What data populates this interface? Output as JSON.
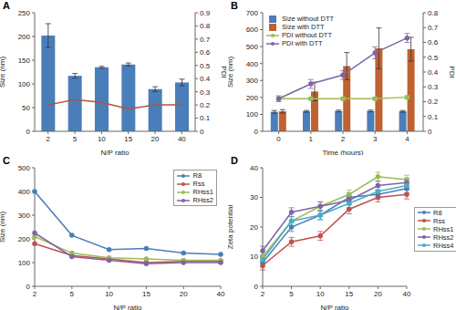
{
  "chart_data": [
    {
      "type": "bar",
      "title": "A",
      "x_label": "N/P ratio",
      "y_label": "Size (nm)",
      "y2_label": "PDI",
      "categories": [
        "2",
        "5",
        "10",
        "15",
        "20",
        "40"
      ],
      "ylim": [
        0,
        250
      ],
      "yticks": [
        0,
        50,
        100,
        150,
        200,
        250
      ],
      "y2lim": [
        0,
        0.9
      ],
      "y2ticks": [
        0,
        0.1,
        0.2,
        0.3,
        0.4,
        0.5,
        0.6,
        0.7,
        0.8,
        0.9
      ],
      "series": [
        {
          "type": "bar",
          "color": "#4a7ebb",
          "values": [
            202,
            117,
            135,
            141,
            89,
            103
          ],
          "errors": [
            25,
            5,
            2,
            3,
            5,
            7
          ]
        },
        {
          "type": "line",
          "axis": "y2",
          "color": "#b4533c",
          "values": [
            0.2,
            0.24,
            0.22,
            0.17,
            0.2,
            0.2
          ]
        }
      ]
    },
    {
      "type": "bar",
      "title": "B",
      "x_label": "Time (hours)",
      "y_label": "Size (nm)",
      "y2_label": "PDI",
      "categories": [
        "0",
        "1",
        "2",
        "3",
        "4"
      ],
      "ylim": [
        0,
        700
      ],
      "yticks": [
        0,
        100,
        200,
        300,
        400,
        500,
        600,
        700
      ],
      "y2lim": [
        0,
        0.8
      ],
      "y2ticks": [
        0,
        0.1,
        0.2,
        0.3,
        0.4,
        0.5,
        0.6,
        0.7,
        0.8
      ],
      "legend": "upper left",
      "series": [
        {
          "name": "Size without DTT",
          "type": "bar",
          "color": "#4a7ebb",
          "values": [
            115,
            118,
            120,
            120,
            118
          ],
          "errors": [
            8,
            5,
            5,
            5,
            5
          ]
        },
        {
          "name": "Size with DTT",
          "type": "bar",
          "color": "#c0622f",
          "values": [
            118,
            235,
            385,
            490,
            485
          ],
          "errors": [
            10,
            55,
            80,
            120,
            70
          ]
        },
        {
          "name": "PDI without DTT",
          "type": "line",
          "axis": "y2",
          "marker": "circle",
          "color": "#9bbb59",
          "values": [
            0.22,
            0.22,
            0.22,
            0.22,
            0.23
          ],
          "errors": [
            0.01,
            0.01,
            0.01,
            0.01,
            0.01
          ]
        },
        {
          "name": "PDI with DTT",
          "type": "line",
          "axis": "y2",
          "marker": "circle",
          "color": "#8064a2",
          "values": [
            0.22,
            0.32,
            0.38,
            0.53,
            0.63
          ],
          "errors": [
            0.02,
            0.03,
            0.03,
            0.04,
            0.03
          ]
        }
      ]
    },
    {
      "type": "line",
      "title": "C",
      "x_label": "N/P ratio",
      "y_label": "Size (nm)",
      "categories": [
        "2",
        "5",
        "10",
        "15",
        "20",
        "40"
      ],
      "ylim": [
        0,
        500
      ],
      "yticks": [
        0,
        100,
        200,
        300,
        400,
        500
      ],
      "legend": "upper right",
      "series": [
        {
          "name": "R8",
          "marker": "circle",
          "color": "#4a7ebb",
          "values": [
            400,
            215,
            155,
            160,
            140,
            135
          ]
        },
        {
          "name": "Rss",
          "marker": "circle",
          "color": "#c0504d",
          "values": [
            180,
            130,
            115,
            100,
            105,
            105
          ]
        },
        {
          "name": "RHss1",
          "marker": "circle",
          "color": "#9bbb59",
          "values": [
            210,
            140,
            120,
            115,
            110,
            110
          ]
        },
        {
          "name": "RHss2",
          "marker": "circle",
          "color": "#8064a2",
          "values": [
            225,
            125,
            110,
            95,
            100,
            100
          ]
        }
      ]
    },
    {
      "type": "line",
      "title": "D",
      "x_label": "N/P ratio",
      "y_label": "Zeta potential",
      "categories": [
        "2",
        "5",
        "10",
        "15",
        "20",
        "40"
      ],
      "ylim": [
        0,
        40
      ],
      "yticks": [
        0,
        10,
        20,
        30,
        40
      ],
      "legend": "right",
      "series": [
        {
          "name": "R8",
          "marker": "circle",
          "color": "#4a7ebb",
          "values": [
            8,
            20,
            24,
            30,
            31,
            33
          ],
          "errors": [
            1.5,
            1.5,
            1.5,
            1.5,
            1.5,
            1.5
          ]
        },
        {
          "name": "Rss",
          "marker": "circle",
          "color": "#c0504d",
          "values": [
            7,
            15,
            17,
            26,
            30,
            31
          ],
          "errors": [
            1.5,
            1.5,
            1.5,
            1.5,
            1.5,
            1.5
          ]
        },
        {
          "name": "RHss1",
          "marker": "circle",
          "color": "#9bbb59",
          "values": [
            10,
            22,
            27,
            31,
            37,
            36
          ],
          "errors": [
            1.5,
            1.5,
            1.5,
            1.5,
            1.5,
            1.5
          ]
        },
        {
          "name": "RHss2",
          "marker": "circle",
          "color": "#8064a2",
          "values": [
            12,
            25,
            27,
            29,
            34,
            35
          ],
          "errors": [
            1.5,
            1.5,
            1.5,
            1.5,
            1.5,
            1.5
          ]
        },
        {
          "name": "RHss4",
          "marker": "circle",
          "color": "#4bacc6",
          "values": [
            9,
            22,
            24,
            28,
            32,
            34
          ],
          "errors": [
            1.5,
            1.5,
            1.5,
            1.5,
            1.5,
            1.5
          ]
        }
      ]
    }
  ]
}
